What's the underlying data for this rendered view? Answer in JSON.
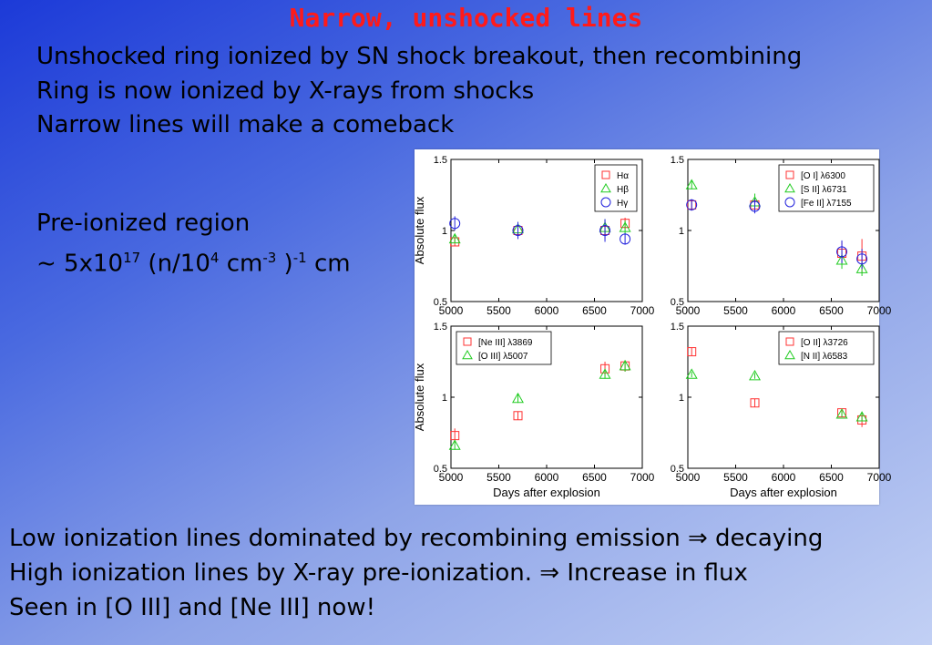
{
  "slide": {
    "title": "Narrow, unshocked lines",
    "bullets": [
      "Unshocked ring ionized by SN shock breakout, then recombining",
      "Ring is now ionized by X-rays from shocks",
      "Narrow lines will make a comeback"
    ],
    "preionized": {
      "line1": "Pre-ionized region",
      "l2_a": "~ 5x10",
      "l2_sup1": "17",
      "l2_b": " (n/10",
      "l2_sup2": "4",
      "l2_c": " cm",
      "l2_sup3": "-3",
      "l2_d": " )",
      "l2_sup4": "-1",
      "l2_e": "  cm"
    },
    "bottom": [
      "Low ionization lines dominated by recombining emission ⇒ decaying",
      "High ionization lines by X-ray pre-ionization. ⇒ Increase in flux",
      "Seen in [O III] and [Ne III] now!"
    ]
  },
  "colors": {
    "red": "#ff3333",
    "green": "#22cc22",
    "blue": "#2222dd"
  },
  "chart_data": [
    {
      "type": "scatter",
      "xlabel": "",
      "ylabel": "Absolute flux",
      "xlim": [
        5000,
        7000
      ],
      "ylim": [
        0.5,
        1.5
      ],
      "xticks": [
        5000,
        5500,
        6000,
        6500,
        7000
      ],
      "yticks": [
        0.5,
        1,
        1.5
      ],
      "legend_position": "top-right",
      "series": [
        {
          "name": "Hα",
          "marker": "square",
          "color": "red",
          "points": [
            [
              5040,
              0.92,
              0.03
            ],
            [
              5700,
              1.0,
              0.04
            ],
            [
              6610,
              1.0,
              0.06
            ],
            [
              6820,
              1.05,
              0.04
            ]
          ]
        },
        {
          "name": "Hβ",
          "marker": "triangle",
          "color": "green",
          "points": [
            [
              5040,
              0.94,
              0.03
            ],
            [
              5700,
              1.01,
              0.05
            ],
            [
              6610,
              1.02,
              0.06
            ],
            [
              6820,
              1.02,
              0.05
            ]
          ]
        },
        {
          "name": "Hγ",
          "marker": "circle",
          "color": "blue",
          "points": [
            [
              5040,
              1.05,
              0.05
            ],
            [
              5700,
              1.0,
              0.06
            ],
            [
              6610,
              1.0,
              0.08
            ],
            [
              6820,
              0.94,
              0.04
            ]
          ]
        }
      ]
    },
    {
      "type": "scatter",
      "xlabel": "",
      "ylabel": "",
      "xlim": [
        5000,
        7000
      ],
      "ylim": [
        0.5,
        1.5
      ],
      "xticks": [
        5000,
        5500,
        6000,
        6500,
        7000
      ],
      "yticks": [
        0.5,
        1,
        1.5
      ],
      "legend_position": "top-right",
      "series": [
        {
          "name": "[O I] λ6300",
          "marker": "square",
          "color": "red",
          "points": [
            [
              5040,
              1.18,
              0.04
            ],
            [
              5700,
              1.18,
              0.05
            ],
            [
              6610,
              0.84,
              0.08
            ],
            [
              6820,
              0.82,
              0.12
            ]
          ]
        },
        {
          "name": "[S II] λ6731",
          "marker": "triangle",
          "color": "green",
          "points": [
            [
              5040,
              1.32,
              0.03
            ],
            [
              5700,
              1.2,
              0.06
            ],
            [
              6610,
              0.79,
              0.06
            ],
            [
              6820,
              0.73,
              0.05
            ]
          ]
        },
        {
          "name": "[Fe II] λ7155",
          "marker": "circle",
          "color": "blue",
          "points": [
            [
              5040,
              1.18,
              0.04
            ],
            [
              5700,
              1.17,
              0.05
            ],
            [
              6610,
              0.85,
              0.08
            ],
            [
              6820,
              0.8,
              0.07
            ]
          ]
        }
      ]
    },
    {
      "type": "scatter",
      "xlabel": "Days after explosion",
      "ylabel": "Absolute flux",
      "xlim": [
        5000,
        7000
      ],
      "ylim": [
        0.5,
        1.5
      ],
      "xticks": [
        5000,
        5500,
        6000,
        6500,
        7000
      ],
      "yticks": [
        0.5,
        1,
        1.5
      ],
      "legend_position": "top-left",
      "series": [
        {
          "name": "[Ne III] λ3869",
          "marker": "square",
          "color": "red",
          "points": [
            [
              5040,
              0.73,
              0.05
            ],
            [
              5700,
              0.87,
              0.03
            ],
            [
              6610,
              1.2,
              0.05
            ],
            [
              6820,
              1.22,
              0.04
            ]
          ]
        },
        {
          "name": "[O III] λ5007",
          "marker": "triangle",
          "color": "green",
          "points": [
            [
              5040,
              0.66,
              0.03
            ],
            [
              5700,
              0.99,
              0.03
            ],
            [
              6610,
              1.16,
              0.03
            ],
            [
              6820,
              1.22,
              0.04
            ]
          ]
        }
      ]
    },
    {
      "type": "scatter",
      "xlabel": "Days after explosion",
      "ylabel": "",
      "xlim": [
        5000,
        7000
      ],
      "ylim": [
        0.5,
        1.5
      ],
      "xticks": [
        5000,
        5500,
        6000,
        6500,
        7000
      ],
      "yticks": [
        0.5,
        1,
        1.5
      ],
      "legend_position": "top-right",
      "series": [
        {
          "name": "[O II] λ3726",
          "marker": "square",
          "color": "red",
          "points": [
            [
              5040,
              1.32,
              0.03
            ],
            [
              5700,
              0.96,
              0.03
            ],
            [
              6610,
              0.89,
              0.03
            ],
            [
              6820,
              0.84,
              0.05
            ]
          ]
        },
        {
          "name": "[N II] λ6583",
          "marker": "triangle",
          "color": "green",
          "points": [
            [
              5040,
              1.16,
              0.02
            ],
            [
              5700,
              1.15,
              0.02
            ],
            [
              6610,
              0.88,
              0.02
            ],
            [
              6820,
              0.86,
              0.03
            ]
          ]
        }
      ]
    }
  ]
}
